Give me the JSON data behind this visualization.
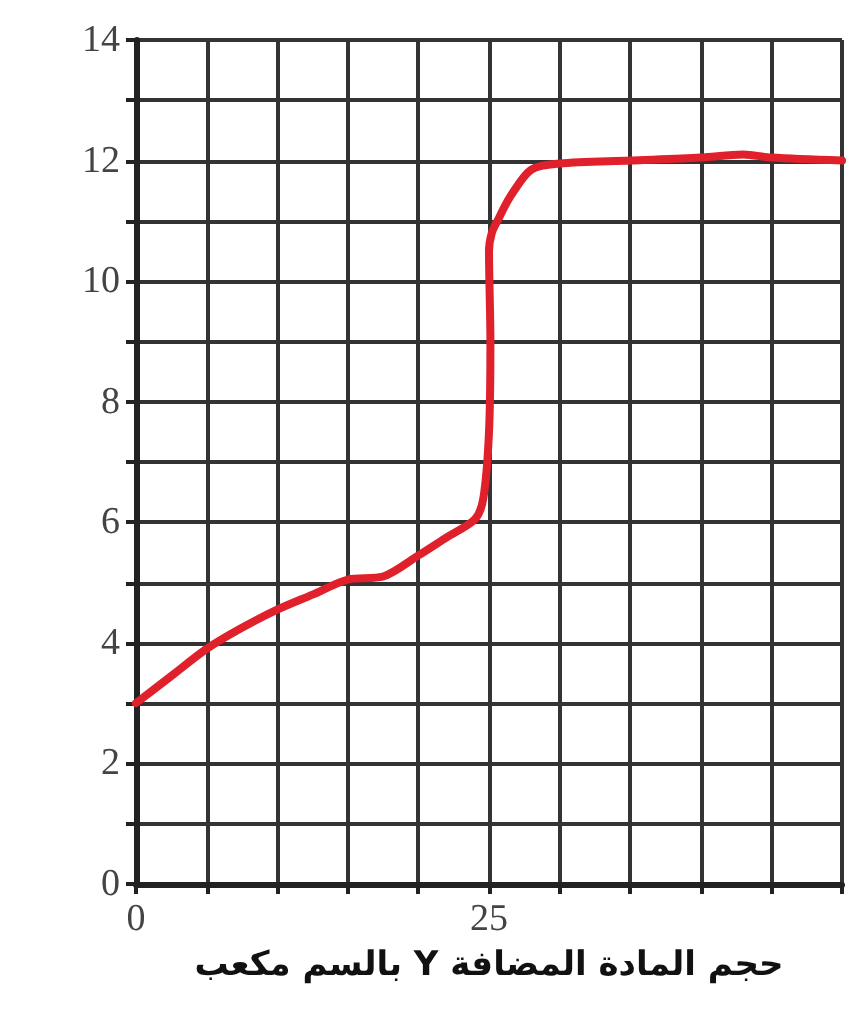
{
  "chart_data": {
    "type": "line",
    "xlabel": "حجم المادة المضافة Y بالسم مكعب",
    "series": [
      {
        "color": "#e0202a",
        "x": [
          0,
          2.5,
          5,
          7.5,
          10,
          12.5,
          15,
          17.5,
          20,
          22,
          24,
          24.6,
          25,
          25.1,
          25,
          25.2,
          25.6,
          26.5,
          28,
          30,
          35,
          40,
          43,
          45,
          50
        ],
        "values": [
          3,
          3.45,
          3.9,
          4.25,
          4.55,
          4.8,
          5.05,
          5.1,
          5.45,
          5.75,
          6.05,
          6.4,
          7.5,
          9,
          10.5,
          10.8,
          11,
          11.4,
          11.85,
          11.95,
          12,
          12.05,
          12.1,
          12.05,
          12
        ]
      }
    ],
    "xlim": [
      0,
      50
    ],
    "ylim": [
      0,
      14
    ],
    "xticks": [
      0,
      {
        "value": 5,
        "label": null
      },
      {
        "value": 10,
        "label": null
      },
      {
        "value": 15,
        "label": null
      },
      {
        "value": 20,
        "label": null
      },
      25,
      {
        "value": 30,
        "label": null
      },
      {
        "value": 35,
        "label": null
      },
      {
        "value": 40,
        "label": null
      },
      {
        "value": 45,
        "label": null
      },
      {
        "value": 50,
        "label": null
      }
    ],
    "yticks": [
      0,
      {
        "value": 1,
        "label": null
      },
      2,
      {
        "value": 3,
        "label": null
      },
      4,
      {
        "value": 5,
        "label": null
      },
      6,
      {
        "value": 7,
        "label": null
      },
      8,
      {
        "value": 9,
        "label": null
      },
      10,
      {
        "value": 11,
        "label": null
      },
      12,
      {
        "value": 13,
        "label": null
      },
      14
    ],
    "grid": true,
    "marker": "none",
    "line_style": "solid"
  }
}
